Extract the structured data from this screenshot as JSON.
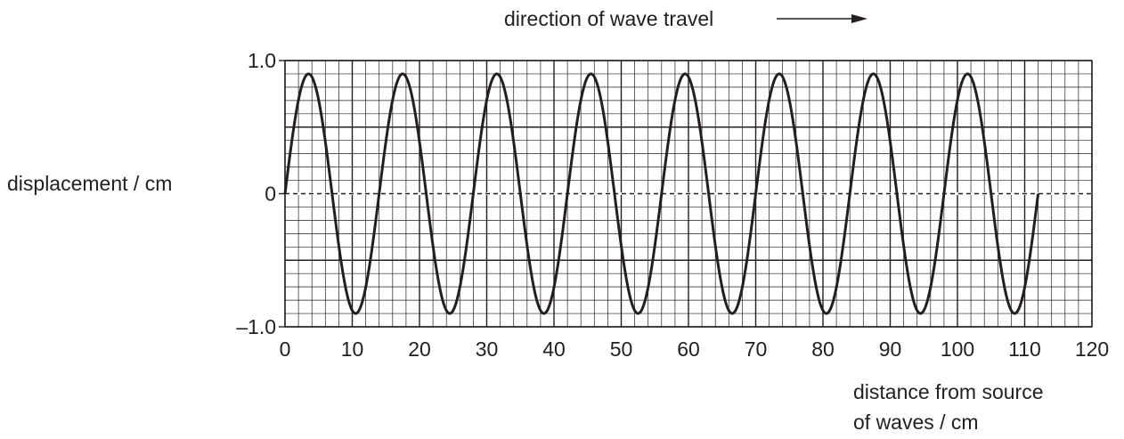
{
  "chart_data": {
    "type": "line",
    "annotation": "direction of wave travel",
    "ylabel": "displacement / cm",
    "xlabel_line1": "distance from source",
    "xlabel_line2": "of waves / cm",
    "xlim": [
      0,
      120
    ],
    "ylim": [
      -1.0,
      1.0
    ],
    "xticks": [
      0,
      10,
      20,
      30,
      40,
      50,
      60,
      70,
      80,
      90,
      100,
      110,
      120
    ],
    "yticks": [
      {
        "value": 1.0,
        "label": "1.0"
      },
      {
        "value": 0,
        "label": "0"
      },
      {
        "value": -1.0,
        "label": "–1.0"
      }
    ],
    "grid": true,
    "series": [
      {
        "amplitude": 0.9,
        "wavelength": 14,
        "x_start": 0,
        "x_end": 112,
        "color": "#231f20"
      }
    ],
    "zero_line": "dashed"
  }
}
